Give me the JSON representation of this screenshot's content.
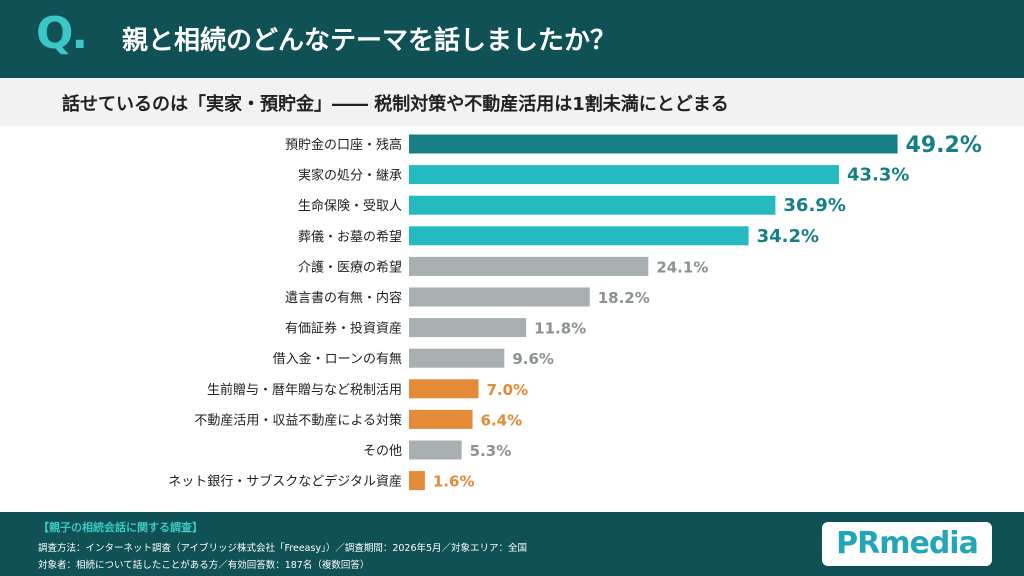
{
  "header": {
    "q_mark": "Q.",
    "title": "親と相続のどんなテーマを話しましたか？"
  },
  "subtitle": "話せているのは「実家・預貯金」―― 税制対策や不動産活用は1割未満にとどまる",
  "chart_data": {
    "type": "bar",
    "orientation": "horizontal",
    "unit": "%",
    "categories": [
      "預貯金の口座・残高",
      "実家の処分・継承",
      "生命保険・受取人",
      "葬儀・お墓の希望",
      "介護・医療の希望",
      "遺言書の有無・内容",
      "有価証券・投資資産",
      "借入金・ローンの有無",
      "生前贈与・暦年贈与など税制活用",
      "不動産活用・収益不動産による対策",
      "その他",
      "ネット銀行・サブスクなどデジタル資産"
    ],
    "values": [
      49.2,
      43.3,
      36.9,
      34.2,
      24.1,
      18.2,
      11.8,
      9.6,
      7.0,
      6.4,
      5.3,
      1.6
    ],
    "value_labels": [
      "49.2%",
      "43.3%",
      "36.9%",
      "34.2%",
      "24.1%",
      "18.2%",
      "11.8%",
      "9.6%",
      "7.0%",
      "6.4%",
      "5.3%",
      "1.6%"
    ],
    "bar_groups": [
      "top",
      "high",
      "high",
      "high",
      "neutral",
      "neutral",
      "neutral",
      "neutral",
      "low",
      "low",
      "neutral",
      "low"
    ],
    "colors": {
      "top": "#147f86",
      "high": "#25bac0",
      "neutral": "#a7afb1",
      "low": "#e38b38"
    },
    "label_colors": {
      "top": "#147f86",
      "high": "#147f86",
      "neutral": "#8a9294",
      "low": "#e38b38"
    },
    "xlim": [
      0,
      50
    ],
    "grid": false,
    "legend": "none"
  },
  "footer": {
    "survey_title": "【親子の相続会話に関する調査】",
    "method": "調査方法：インターネット調査（アイブリッジ株式会社「Freeasy」）／調査期間：2026年5月／対象エリア：全国",
    "target": "対象者：相続について話したことがある方／有効回答数：187名（複数回答）",
    "logo_text": "PRmedia"
  }
}
